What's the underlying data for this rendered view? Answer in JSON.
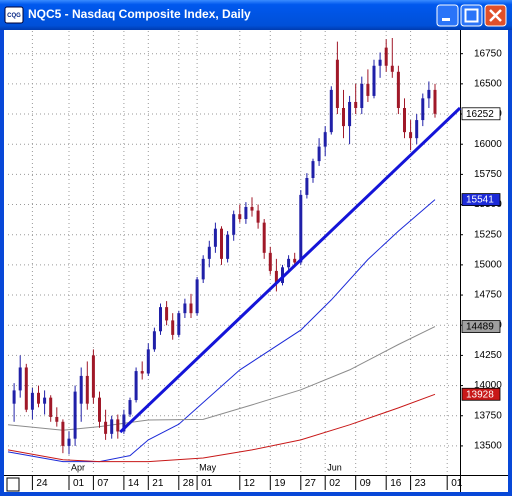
{
  "chart_data": {
    "type": "candlestick",
    "title": "NQC5 - Nasdaq Composite Index, Daily",
    "xlim": [
      -1,
      73.1
    ],
    "ylim": [
      13259,
      16938
    ],
    "yticks": [
      13500,
      13750,
      14000,
      14250,
      14500,
      14750,
      15000,
      15250,
      15500,
      15750,
      16000,
      16250,
      16500,
      16750
    ],
    "xticks": [
      {
        "value": 3,
        "label": "24"
      },
      {
        "value": 9,
        "label": "01"
      },
      {
        "value": 13,
        "label": "07"
      },
      {
        "value": 18,
        "label": "14"
      },
      {
        "value": 22,
        "label": "21"
      },
      {
        "value": 27,
        "label": "28"
      },
      {
        "value": 30,
        "label": "01"
      },
      {
        "value": 37,
        "label": "12"
      },
      {
        "value": 42,
        "label": "19"
      },
      {
        "value": 47,
        "label": "27"
      },
      {
        "value": 51,
        "label": "02"
      },
      {
        "value": 56,
        "label": "09"
      },
      {
        "value": 61,
        "label": "16"
      },
      {
        "value": 65,
        "label": "23"
      },
      {
        "value": 71,
        "label": "01"
      }
    ],
    "months": [
      {
        "value": 9,
        "label": "Apr"
      },
      {
        "value": 30,
        "label": "May"
      },
      {
        "value": 51,
        "label": "Jun"
      }
    ],
    "grid": true,
    "candles": {
      "up_color": "#2020a8",
      "down_color": "#a01828",
      "label_color": "#ffffff",
      "open": [
        13850,
        13960,
        14150,
        13800,
        13940,
        13850,
        13900,
        13740,
        13700,
        13500,
        13560,
        13850,
        14080,
        14250,
        13900,
        13700,
        13600,
        13720,
        13620,
        13760,
        13880,
        14120,
        14100,
        14300,
        14450,
        14650,
        14540,
        14420,
        14600,
        14680,
        14600,
        14880,
        15050,
        15150,
        15300,
        15050,
        15250,
        15420,
        15380,
        15480,
        15450,
        15350,
        15100,
        14950,
        14850,
        14980,
        15050,
        15020,
        15580,
        15720,
        15860,
        15980,
        16100,
        16700,
        16300,
        16150,
        16350,
        16300,
        16500,
        16400,
        16650,
        16800,
        16650,
        16600,
        16300,
        16100,
        16050,
        16200,
        16380,
        16450
      ],
      "high": [
        14020,
        14250,
        14180,
        13980,
        14000,
        13960,
        13920,
        13820,
        13720,
        13620,
        14000,
        14150,
        14200,
        14300,
        13950,
        13800,
        13750,
        13760,
        13800,
        13900,
        14150,
        14200,
        14350,
        14480,
        14680,
        14700,
        14600,
        14620,
        14720,
        14760,
        14900,
        15080,
        15200,
        15350,
        15320,
        15280,
        15450,
        15500,
        15520,
        15560,
        15500,
        15380,
        15150,
        15050,
        15000,
        15080,
        15100,
        15620,
        15760,
        15880,
        16050,
        16150,
        16480,
        16850,
        16450,
        16400,
        16500,
        16560,
        16620,
        16700,
        16760,
        16870,
        16880,
        16650,
        16380,
        16200,
        16250,
        16420,
        16520,
        16500
      ],
      "low": [
        13700,
        13900,
        13780,
        13720,
        13820,
        13760,
        13700,
        13660,
        13440,
        13430,
        13500,
        13700,
        13800,
        13850,
        13650,
        13550,
        13560,
        13560,
        13600,
        13740,
        13860,
        14050,
        14080,
        14280,
        14420,
        14500,
        14380,
        14400,
        14560,
        14560,
        14580,
        14850,
        14980,
        15100,
        15000,
        15020,
        15200,
        15350,
        15340,
        15400,
        15300,
        15050,
        14920,
        14780,
        14830,
        14950,
        14980,
        15000,
        15550,
        15680,
        15820,
        15900,
        16080,
        16250,
        16050,
        16000,
        16250,
        16250,
        16350,
        16380,
        16550,
        16600,
        16550,
        16250,
        16050,
        15950,
        16000,
        16150,
        16300,
        16220
      ],
      "close": [
        13960,
        14150,
        13800,
        13940,
        13850,
        13900,
        13740,
        13700,
        13500,
        13560,
        13950,
        14080,
        13850,
        13900,
        13700,
        13600,
        13720,
        13620,
        13760,
        13880,
        14120,
        14100,
        14300,
        14450,
        14650,
        14540,
        14420,
        14600,
        14680,
        14600,
        14880,
        15050,
        15150,
        15300,
        15050,
        15250,
        15420,
        15380,
        15480,
        15450,
        15350,
        15100,
        14950,
        14850,
        14980,
        15050,
        15020,
        15580,
        15720,
        15860,
        15980,
        16100,
        16450,
        16300,
        16150,
        16350,
        16300,
        16500,
        16400,
        16650,
        16700,
        16650,
        16600,
        16300,
        16100,
        16050,
        16200,
        16380,
        16450,
        16252
      ]
    },
    "series": [
      {
        "color": "#1c2ad8",
        "label_color": "#1c2ad8",
        "x": [
          -1,
          8,
          14,
          19,
          22,
          27,
          37,
          47,
          52,
          58,
          63,
          69
        ],
        "values": [
          13450,
          13370,
          13370,
          13420,
          13550,
          13680,
          14130,
          14460,
          14710,
          15045,
          15280,
          15541
        ]
      },
      {
        "color": "#8c8c8c",
        "label_color": "#a0a0a0",
        "x": [
          -1,
          8,
          14,
          22,
          31,
          39,
          47,
          55,
          63,
          69
        ],
        "values": [
          13675,
          13630,
          13660,
          13715,
          13720,
          13840,
          13965,
          14130,
          14340,
          14489
        ]
      },
      {
        "color": "#c81818",
        "label_color": "#c81818",
        "x": [
          -1,
          8,
          14,
          22,
          31,
          39,
          47,
          55,
          63,
          69
        ],
        "values": [
          13467,
          13385,
          13370,
          13370,
          13400,
          13467,
          13550,
          13675,
          13815,
          13928
        ]
      }
    ],
    "trendline": {
      "color": "#1414d8",
      "x": [
        17.4,
        73.1
      ],
      "values": [
        13615,
        16300
      ]
    }
  }
}
